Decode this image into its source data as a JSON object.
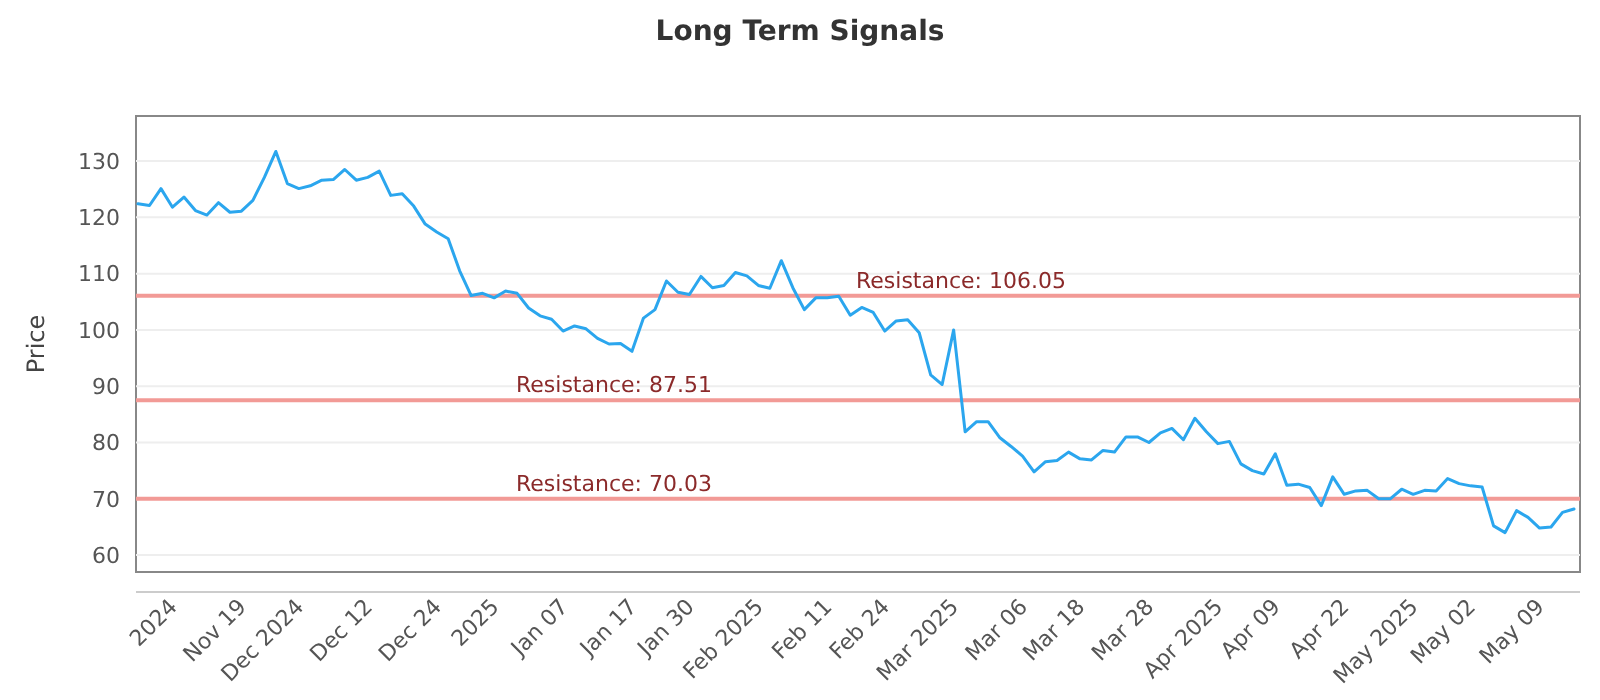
{
  "chart_data": {
    "type": "line",
    "title": "Long Term Signals",
    "ylabel": "Price",
    "categories": [
      null,
      null,
      null,
      "2024",
      null,
      null,
      null,
      null,
      null,
      "Nov 19",
      null,
      null,
      null,
      null,
      "Dec 2024",
      null,
      null,
      null,
      null,
      null,
      "Dec 12",
      null,
      null,
      null,
      null,
      null,
      "Dec 24",
      null,
      null,
      null,
      null,
      "2025",
      null,
      null,
      null,
      null,
      null,
      "Jan 07",
      null,
      null,
      null,
      null,
      null,
      "Jan 17",
      null,
      null,
      null,
      null,
      "Jan 30",
      null,
      null,
      null,
      null,
      null,
      "Feb 2025",
      null,
      null,
      null,
      null,
      null,
      "Feb 11",
      null,
      null,
      null,
      null,
      "Feb 24",
      null,
      null,
      null,
      null,
      null,
      "Mar 2025",
      null,
      null,
      null,
      null,
      null,
      "Mar 06",
      null,
      null,
      null,
      null,
      "Mar 18",
      null,
      null,
      null,
      null,
      null,
      "Mar 28",
      null,
      null,
      null,
      null,
      null,
      "Apr 2025",
      null,
      null,
      null,
      null,
      "Apr 09",
      null,
      null,
      null,
      null,
      null,
      "Apr 22",
      null,
      null,
      null,
      null,
      null,
      "May 2025",
      null,
      null,
      null,
      null,
      "May 02",
      null,
      null,
      null,
      null,
      null,
      "May 09",
      null,
      null,
      null
    ],
    "series": [
      {
        "color": "#2ba6ee",
        "values": [
          122.4,
          122.1,
          125.1,
          121.8,
          123.6,
          121.2,
          120.4,
          122.6,
          120.9,
          121.1,
          123.0,
          127.1,
          131.7,
          126.0,
          125.1,
          125.6,
          126.6,
          126.7,
          128.5,
          126.6,
          127.1,
          128.2,
          123.9,
          124.2,
          122.0,
          118.8,
          117.4,
          116.2,
          110.5,
          106.1,
          106.5,
          105.7,
          106.9,
          106.5,
          103.9,
          102.5,
          101.9,
          99.8,
          100.7,
          100.2,
          98.5,
          97.5,
          97.6,
          96.2,
          102.1,
          103.6,
          108.7,
          106.7,
          106.3,
          109.5,
          107.5,
          107.9,
          110.2,
          109.6,
          107.9,
          107.4,
          112.3,
          107.5,
          103.6,
          105.7,
          105.7,
          106.0,
          102.6,
          104.0,
          103.1,
          99.8,
          101.6,
          101.8,
          99.5,
          92.0,
          90.3,
          100.0,
          81.9,
          83.7,
          83.7,
          80.9,
          79.3,
          77.6,
          74.8,
          76.6,
          76.8,
          78.3,
          77.1,
          76.9,
          78.6,
          78.3,
          81.0,
          81.0,
          80.0,
          81.7,
          82.5,
          80.5,
          84.3,
          81.9,
          79.8,
          80.2,
          76.2,
          75.0,
          74.4,
          78.0,
          72.4,
          72.6,
          72.0,
          68.8,
          73.9,
          70.8,
          71.4,
          71.5,
          70.0,
          70.0,
          71.7,
          70.8,
          71.5,
          71.4,
          73.6,
          72.7,
          72.3,
          72.1,
          65.2,
          64.0,
          67.9,
          66.7,
          64.8,
          65.0,
          67.6,
          68.2
        ]
      }
    ],
    "ylim": [
      57,
      138
    ],
    "yticks": [
      60,
      70,
      80,
      90,
      100,
      110,
      120,
      130
    ],
    "grid": "y",
    "marker": "none",
    "line_style": "solid",
    "ref_lines": [
      {
        "axis": "y",
        "value": 106.05,
        "label": "Resistance: 106.05",
        "color": "#f29a96"
      },
      {
        "axis": "y",
        "value": 87.51,
        "label": "Resistance: 87.51",
        "color": "#f29a96"
      },
      {
        "axis": "y",
        "value": 70.03,
        "label": "Resistance: 70.03",
        "color": "#f29a96"
      }
    ]
  }
}
